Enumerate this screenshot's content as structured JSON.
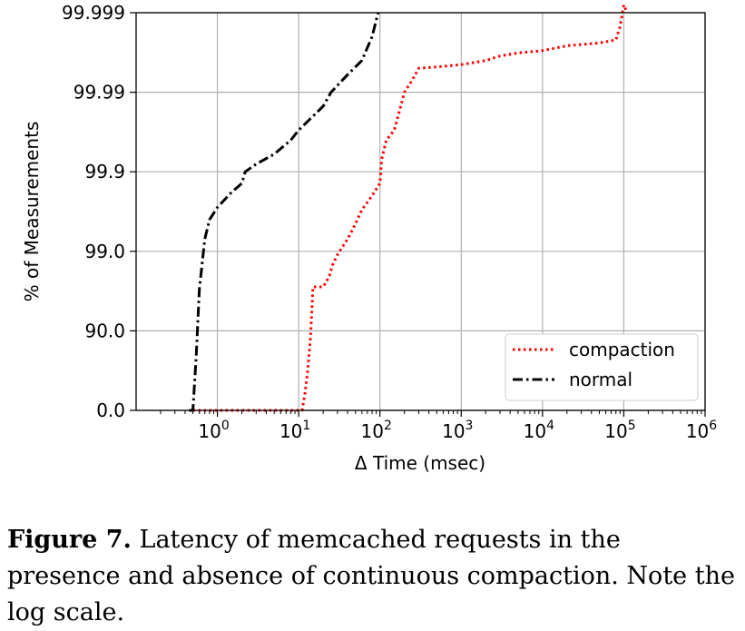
{
  "chart_data": {
    "type": "line",
    "xlabel": "Δ Time (msec)",
    "ylabel": "% of Measurements",
    "x_scale": "log",
    "y_scale": "percentile",
    "xlim": [
      0.1,
      1000000
    ],
    "ylim": [
      0,
      99.999
    ],
    "grid": true,
    "legend_position": "bottom-right",
    "x_ticks": [
      {
        "value": 1,
        "base": "10",
        "exp": "0"
      },
      {
        "value": 10,
        "base": "10",
        "exp": "1"
      },
      {
        "value": 100,
        "base": "10",
        "exp": "2"
      },
      {
        "value": 1000,
        "base": "10",
        "exp": "3"
      },
      {
        "value": 10000,
        "base": "10",
        "exp": "4"
      },
      {
        "value": 100000,
        "base": "10",
        "exp": "5"
      },
      {
        "value": 1000000,
        "base": "10",
        "exp": "6"
      }
    ],
    "y_ticks": [
      {
        "value": 0,
        "label": "0.0"
      },
      {
        "value": 90,
        "label": "90.0"
      },
      {
        "value": 99,
        "label": "99.0"
      },
      {
        "value": 99.9,
        "label": "99.9"
      },
      {
        "value": 99.99,
        "label": "99.99"
      },
      {
        "value": 99.999,
        "label": "99.999"
      }
    ],
    "series": [
      {
        "name": "compaction",
        "color": "#ff0000",
        "style": "dotted",
        "points": [
          [
            0.5,
            0
          ],
          [
            11,
            0
          ],
          [
            12,
            40
          ],
          [
            13,
            70
          ],
          [
            14,
            88
          ],
          [
            15,
            97.2
          ],
          [
            16,
            97.2
          ],
          [
            20,
            97.2
          ],
          [
            22,
            97.6
          ],
          [
            24,
            98.0
          ],
          [
            26,
            98.5
          ],
          [
            30,
            98.9
          ],
          [
            40,
            99.3
          ],
          [
            50,
            99.55
          ],
          [
            60,
            99.7
          ],
          [
            75,
            99.78
          ],
          [
            92,
            99.84
          ],
          [
            100,
            99.86
          ],
          [
            105,
            99.93
          ],
          [
            120,
            99.96
          ],
          [
            150,
            99.97
          ],
          [
            180,
            99.985
          ],
          [
            200,
            99.99
          ],
          [
            250,
            99.993
          ],
          [
            300,
            99.995
          ],
          [
            500,
            99.9952
          ],
          [
            1000,
            99.9955
          ],
          [
            2000,
            99.996
          ],
          [
            3000,
            99.9965
          ],
          [
            5000,
            99.9968
          ],
          [
            10000,
            99.997
          ],
          [
            20000,
            99.9974
          ],
          [
            50000,
            99.9976
          ],
          [
            80000,
            99.9978
          ],
          [
            90000,
            99.9985
          ],
          [
            100000,
            99.9992
          ],
          [
            110000,
            99.999
          ]
        ]
      },
      {
        "name": "normal",
        "color": "#000000",
        "style": "dashdot",
        "points": [
          [
            0.45,
            0
          ],
          [
            0.5,
            0
          ],
          [
            0.55,
            80
          ],
          [
            0.6,
            97
          ],
          [
            0.7,
            99.3
          ],
          [
            0.8,
            99.6
          ],
          [
            1.0,
            99.72
          ],
          [
            1.5,
            99.82
          ],
          [
            2.0,
            99.86
          ],
          [
            2.2,
            99.9
          ],
          [
            3.0,
            99.92
          ],
          [
            5.0,
            99.94
          ],
          [
            8.0,
            99.96
          ],
          [
            10.0,
            99.97
          ],
          [
            15,
            99.98
          ],
          [
            20,
            99.985
          ],
          [
            25,
            99.99
          ],
          [
            40,
            99.994
          ],
          [
            60,
            99.996
          ],
          [
            80,
            99.998
          ],
          [
            95,
            99.999
          ]
        ]
      }
    ]
  },
  "caption": {
    "label": "Figure 7.",
    "text": " Latency of memcached requests in the presence and absence of continuous compaction. Note the log scale."
  }
}
